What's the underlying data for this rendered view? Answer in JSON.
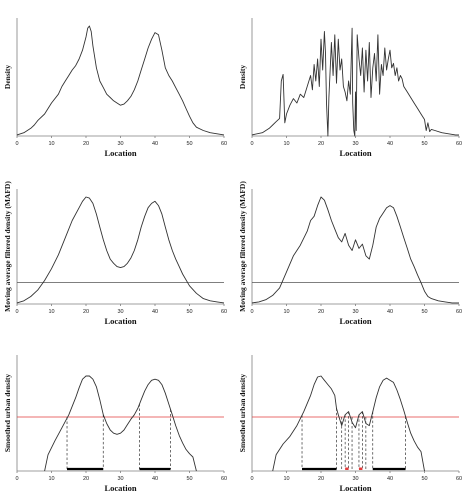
{
  "chart_data": [
    {
      "id": "raw-bimodal",
      "type": "line",
      "xlabel": "Location",
      "ylabel": "Density",
      "xlim": [
        0,
        60
      ],
      "xticks": [
        0,
        10,
        20,
        30,
        40,
        50,
        60
      ],
      "series": [
        {
          "x": [
            0,
            2,
            4,
            5,
            6,
            8,
            10,
            12,
            13,
            14,
            15,
            16,
            17,
            18,
            19,
            20,
            20.5,
            21,
            21.5,
            22,
            23,
            24,
            25,
            26,
            27,
            28,
            29,
            30,
            31,
            32,
            33,
            34,
            35,
            36,
            37,
            38,
            39,
            40,
            41,
            42,
            43,
            44,
            45,
            46,
            47,
            48,
            49,
            50,
            51,
            52,
            54,
            56,
            58,
            60
          ],
          "y": [
            0.01,
            0.03,
            0.07,
            0.1,
            0.14,
            0.2,
            0.3,
            0.38,
            0.45,
            0.5,
            0.55,
            0.6,
            0.64,
            0.7,
            0.78,
            0.9,
            0.98,
            1.0,
            0.95,
            0.82,
            0.62,
            0.5,
            0.44,
            0.38,
            0.35,
            0.32,
            0.3,
            0.28,
            0.29,
            0.32,
            0.36,
            0.42,
            0.5,
            0.6,
            0.7,
            0.8,
            0.88,
            0.94,
            0.92,
            0.78,
            0.62,
            0.55,
            0.5,
            0.44,
            0.38,
            0.32,
            0.25,
            0.18,
            0.12,
            0.08,
            0.05,
            0.03,
            0.02,
            0.01
          ]
        }
      ]
    },
    {
      "id": "raw-noisy",
      "type": "line",
      "xlabel": "Location",
      "ylabel": "Density",
      "xlim": [
        0,
        60
      ],
      "xticks": [
        0,
        10,
        20,
        30,
        40,
        50,
        60
      ],
      "series": [
        {
          "x": [
            0,
            3,
            5,
            6,
            7,
            8,
            8.5,
            9,
            9.5,
            10,
            11,
            12,
            13,
            14,
            15,
            16,
            17,
            17.5,
            18,
            18.5,
            19,
            19.5,
            20,
            20.5,
            21,
            21.3,
            21.6,
            22,
            22.3,
            23,
            23.5,
            24,
            24.5,
            25,
            25.5,
            26,
            26.5,
            27,
            27.5,
            28,
            28.5,
            29,
            29.2,
            29.5,
            29.8,
            30,
            30.2,
            30.5,
            31,
            31.5,
            32,
            32.5,
            33,
            33.5,
            34,
            34.5,
            35,
            35.5,
            36,
            36.5,
            37,
            37.5,
            38,
            38.5,
            39,
            39.5,
            40,
            40.5,
            41,
            41.5,
            42,
            42.5,
            43,
            43.5,
            44,
            45,
            46,
            47,
            48,
            49,
            50,
            50.5,
            51,
            51.5,
            52,
            53,
            55,
            57,
            59,
            60
          ],
          "y": [
            0.01,
            0.03,
            0.07,
            0.1,
            0.13,
            0.16,
            0.5,
            0.56,
            0.12,
            0.2,
            0.28,
            0.34,
            0.3,
            0.38,
            0.35,
            0.45,
            0.55,
            0.42,
            0.65,
            0.5,
            0.7,
            0.45,
            0.88,
            0.6,
            0.95,
            0.75,
            0.3,
            0.0,
            0.35,
            0.85,
            0.55,
            0.92,
            0.48,
            0.88,
            0.6,
            0.7,
            0.45,
            0.4,
            0.32,
            0.5,
            0.38,
            0.98,
            0.3,
            0.05,
            0.0,
            0.4,
            0.05,
            0.92,
            0.7,
            0.55,
            0.8,
            0.4,
            0.78,
            0.5,
            0.85,
            0.35,
            0.62,
            0.75,
            0.5,
            0.92,
            0.38,
            0.65,
            0.55,
            0.8,
            0.6,
            0.7,
            0.78,
            0.62,
            0.66,
            0.55,
            0.62,
            0.5,
            0.55,
            0.52,
            0.45,
            0.4,
            0.35,
            0.3,
            0.25,
            0.2,
            0.15,
            0.05,
            0.12,
            0.04,
            0.06,
            0.05,
            0.03,
            0.02,
            0.01,
            0.01
          ]
        }
      ]
    },
    {
      "id": "mafd-bimodal",
      "type": "line",
      "xlabel": "Location",
      "ylabel": "Moving average filtered density (MAFD)",
      "xlim": [
        0,
        60
      ],
      "xticks": [
        0,
        10,
        20,
        30,
        40,
        50,
        60
      ],
      "threshold": 0.2,
      "series": [
        {
          "x": [
            0,
            2,
            4,
            6,
            8,
            10,
            12,
            14,
            16,
            18,
            19,
            20,
            21,
            22,
            23,
            24,
            25,
            26,
            27,
            28,
            29,
            30,
            31,
            32,
            33,
            34,
            35,
            36,
            37,
            38,
            39,
            40,
            41,
            42,
            43,
            44,
            45,
            46,
            47,
            48,
            50,
            52,
            54,
            56,
            58,
            60
          ],
          "y": [
            0.01,
            0.03,
            0.07,
            0.13,
            0.22,
            0.33,
            0.46,
            0.62,
            0.78,
            0.9,
            0.96,
            1.0,
            0.99,
            0.94,
            0.84,
            0.72,
            0.6,
            0.5,
            0.42,
            0.38,
            0.35,
            0.34,
            0.35,
            0.38,
            0.43,
            0.5,
            0.6,
            0.72,
            0.82,
            0.9,
            0.94,
            0.96,
            0.92,
            0.84,
            0.72,
            0.6,
            0.5,
            0.42,
            0.35,
            0.28,
            0.17,
            0.1,
            0.05,
            0.03,
            0.02,
            0.01
          ]
        }
      ]
    },
    {
      "id": "mafd-noisy",
      "type": "line",
      "xlabel": "Location",
      "ylabel": "Moving average filtered density (MAFD)",
      "xlim": [
        0,
        60
      ],
      "xticks": [
        0,
        10,
        20,
        30,
        40,
        50,
        60
      ],
      "threshold": 0.2,
      "series": [
        {
          "x": [
            0,
            2,
            4,
            6,
            8,
            10,
            12,
            14,
            16,
            17,
            18,
            19,
            20,
            21,
            22,
            23,
            24,
            25,
            26,
            27,
            28,
            29,
            30,
            31,
            32,
            33,
            34,
            35,
            36,
            37,
            38,
            39,
            40,
            41,
            42,
            43,
            44,
            45,
            46,
            47,
            48,
            49,
            50,
            51,
            52,
            54,
            56,
            58,
            60
          ],
          "y": [
            0.01,
            0.02,
            0.04,
            0.08,
            0.15,
            0.3,
            0.45,
            0.55,
            0.68,
            0.78,
            0.82,
            0.92,
            1.0,
            0.97,
            0.88,
            0.78,
            0.7,
            0.62,
            0.58,
            0.66,
            0.55,
            0.5,
            0.6,
            0.52,
            0.56,
            0.45,
            0.42,
            0.55,
            0.72,
            0.8,
            0.85,
            0.9,
            0.92,
            0.9,
            0.82,
            0.72,
            0.62,
            0.52,
            0.42,
            0.35,
            0.27,
            0.2,
            0.12,
            0.07,
            0.05,
            0.03,
            0.02,
            0.01,
            0.01
          ]
        }
      ]
    },
    {
      "id": "smoothed-bimodal",
      "type": "line",
      "xlabel": "Location",
      "ylabel": "Smoothed urban density",
      "xlim": [
        0,
        60
      ],
      "xticks": [
        0,
        10,
        20,
        30,
        40,
        50,
        60
      ],
      "threshold": 0.5,
      "segments": [
        [
          14.5,
          25
        ],
        [
          35.5,
          44.5
        ]
      ],
      "dashed_x": [
        14.5,
        25,
        35.5,
        44.5
      ],
      "series": [
        {
          "x": [
            8,
            9,
            11,
            13,
            15,
            17,
            18,
            19,
            20,
            21,
            22,
            23,
            24,
            25,
            26,
            27,
            28,
            29,
            30,
            31,
            32,
            33,
            34,
            35,
            36,
            37,
            38,
            39,
            40,
            41,
            42,
            43,
            44,
            45,
            46,
            47,
            48,
            49,
            50,
            51,
            52
          ],
          "y": [
            0,
            0.15,
            0.28,
            0.4,
            0.52,
            0.68,
            0.77,
            0.85,
            0.88,
            0.88,
            0.85,
            0.78,
            0.66,
            0.52,
            0.44,
            0.38,
            0.35,
            0.34,
            0.35,
            0.38,
            0.43,
            0.48,
            0.52,
            0.58,
            0.66,
            0.74,
            0.8,
            0.84,
            0.85,
            0.84,
            0.8,
            0.72,
            0.62,
            0.52,
            0.42,
            0.33,
            0.26,
            0.2,
            0.16,
            0.13,
            0
          ]
        }
      ]
    },
    {
      "id": "smoothed-noisy",
      "type": "line",
      "xlabel": "Location",
      "ylabel": "Smoothed urban density",
      "xlim": [
        0,
        60
      ],
      "xticks": [
        0,
        10,
        20,
        30,
        40,
        50,
        60
      ],
      "threshold": 0.5,
      "segments": [
        [
          14.5,
          24.5
        ],
        [
          35,
          44.5
        ]
      ],
      "red_segments": [
        [
          27,
          28
        ],
        [
          31,
          32
        ]
      ],
      "dashed_x": [
        14.5,
        24.5,
        26,
        27,
        28,
        29,
        31,
        32,
        33,
        35,
        44.5
      ],
      "series": [
        {
          "x": [
            6,
            7,
            9,
            11,
            13,
            15,
            17,
            18,
            19,
            20,
            21,
            22,
            23,
            24,
            24.5,
            25,
            26,
            27,
            28,
            29,
            30,
            31,
            32,
            33,
            34,
            35,
            36,
            37,
            38,
            39,
            40,
            41,
            42,
            43,
            44,
            45,
            46,
            47,
            48,
            49,
            50
          ],
          "y": [
            0,
            0.15,
            0.25,
            0.32,
            0.42,
            0.55,
            0.7,
            0.8,
            0.87,
            0.88,
            0.84,
            0.8,
            0.76,
            0.7,
            0.58,
            0.52,
            0.42,
            0.52,
            0.55,
            0.45,
            0.4,
            0.52,
            0.55,
            0.44,
            0.42,
            0.55,
            0.68,
            0.78,
            0.84,
            0.86,
            0.84,
            0.82,
            0.75,
            0.66,
            0.56,
            0.45,
            0.35,
            0.28,
            0.22,
            0.18,
            0
          ]
        }
      ]
    }
  ]
}
